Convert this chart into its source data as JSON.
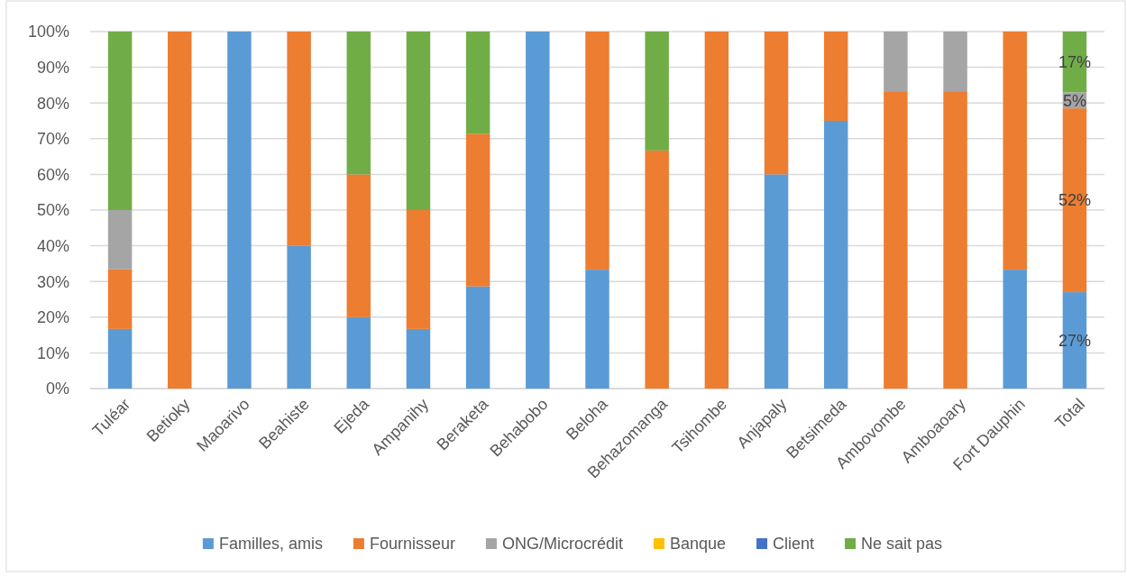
{
  "chart_data": {
    "type": "bar",
    "stacked": true,
    "categories": [
      "Tuléar",
      "Betioky",
      "Maoarivo",
      "Beahiste",
      "Ejeda",
      "Ampanihy",
      "Beraketa",
      "Behabobo",
      "Beloha",
      "Behazomanga",
      "Tsihombe",
      "Anjapaly",
      "Betsimeda",
      "Ambovombe",
      "Amboaoary",
      "Fort Dauphin",
      "Total"
    ],
    "series": [
      {
        "name": "Familles, amis",
        "color": "#5b9bd5",
        "values": [
          16.7,
          0,
          100,
          40,
          20,
          16.7,
          28.6,
          100,
          33.3,
          0,
          0,
          60,
          75,
          0,
          0,
          33.3,
          27
        ],
        "value_labels": [
          null,
          null,
          null,
          null,
          null,
          null,
          null,
          null,
          null,
          null,
          null,
          null,
          null,
          null,
          null,
          null,
          "27%"
        ]
      },
      {
        "name": "Fournisseur",
        "color": "#ed7d31",
        "values": [
          16.7,
          100,
          0,
          60,
          40,
          33.3,
          42.8,
          0,
          66.7,
          66.7,
          100,
          40,
          25,
          83.3,
          83.3,
          66.7,
          51.5
        ],
        "value_labels": [
          null,
          null,
          null,
          null,
          null,
          null,
          null,
          null,
          null,
          null,
          null,
          null,
          null,
          null,
          null,
          null,
          "52%"
        ]
      },
      {
        "name": "ONG/Microcrédit",
        "color": "#a5a5a5",
        "values": [
          16.6,
          0,
          0,
          0,
          0,
          0,
          0,
          0,
          0,
          0,
          0,
          0,
          0,
          16.7,
          16.7,
          0,
          4.5
        ],
        "value_labels": [
          null,
          null,
          null,
          null,
          null,
          null,
          null,
          null,
          null,
          null,
          null,
          null,
          null,
          null,
          null,
          null,
          "5%"
        ]
      },
      {
        "name": "Banque",
        "color": "#ffc000",
        "values": [
          0,
          0,
          0,
          0,
          0,
          0,
          0,
          0,
          0,
          0,
          0,
          0,
          0,
          0,
          0,
          0,
          0
        ]
      },
      {
        "name": "Client",
        "color": "#4472c4",
        "values": [
          0,
          0,
          0,
          0,
          0,
          0,
          0,
          0,
          0,
          0,
          0,
          0,
          0,
          0,
          0,
          0,
          0
        ]
      },
      {
        "name": "Ne sait pas",
        "color": "#70ad47",
        "values": [
          50,
          0,
          0,
          0,
          40,
          50,
          28.6,
          0,
          0,
          33.3,
          0,
          0,
          0,
          0,
          0,
          0,
          17
        ],
        "value_labels": [
          null,
          null,
          null,
          null,
          null,
          null,
          null,
          null,
          null,
          null,
          null,
          null,
          null,
          null,
          null,
          null,
          "17%"
        ]
      }
    ],
    "ylim": [
      0,
      100
    ],
    "yticks": [
      {
        "value": 0,
        "label": "0%"
      },
      {
        "value": 10,
        "label": "10%"
      },
      {
        "value": 20,
        "label": "20%"
      },
      {
        "value": 30,
        "label": "30%"
      },
      {
        "value": 40,
        "label": "40%"
      },
      {
        "value": 50,
        "label": "50%"
      },
      {
        "value": 60,
        "label": "60%"
      },
      {
        "value": 70,
        "label": "70%"
      },
      {
        "value": 80,
        "label": "80%"
      },
      {
        "value": 90,
        "label": "90%"
      },
      {
        "value": 100,
        "label": "100%"
      }
    ],
    "grid": "y",
    "legend": "bottom"
  }
}
